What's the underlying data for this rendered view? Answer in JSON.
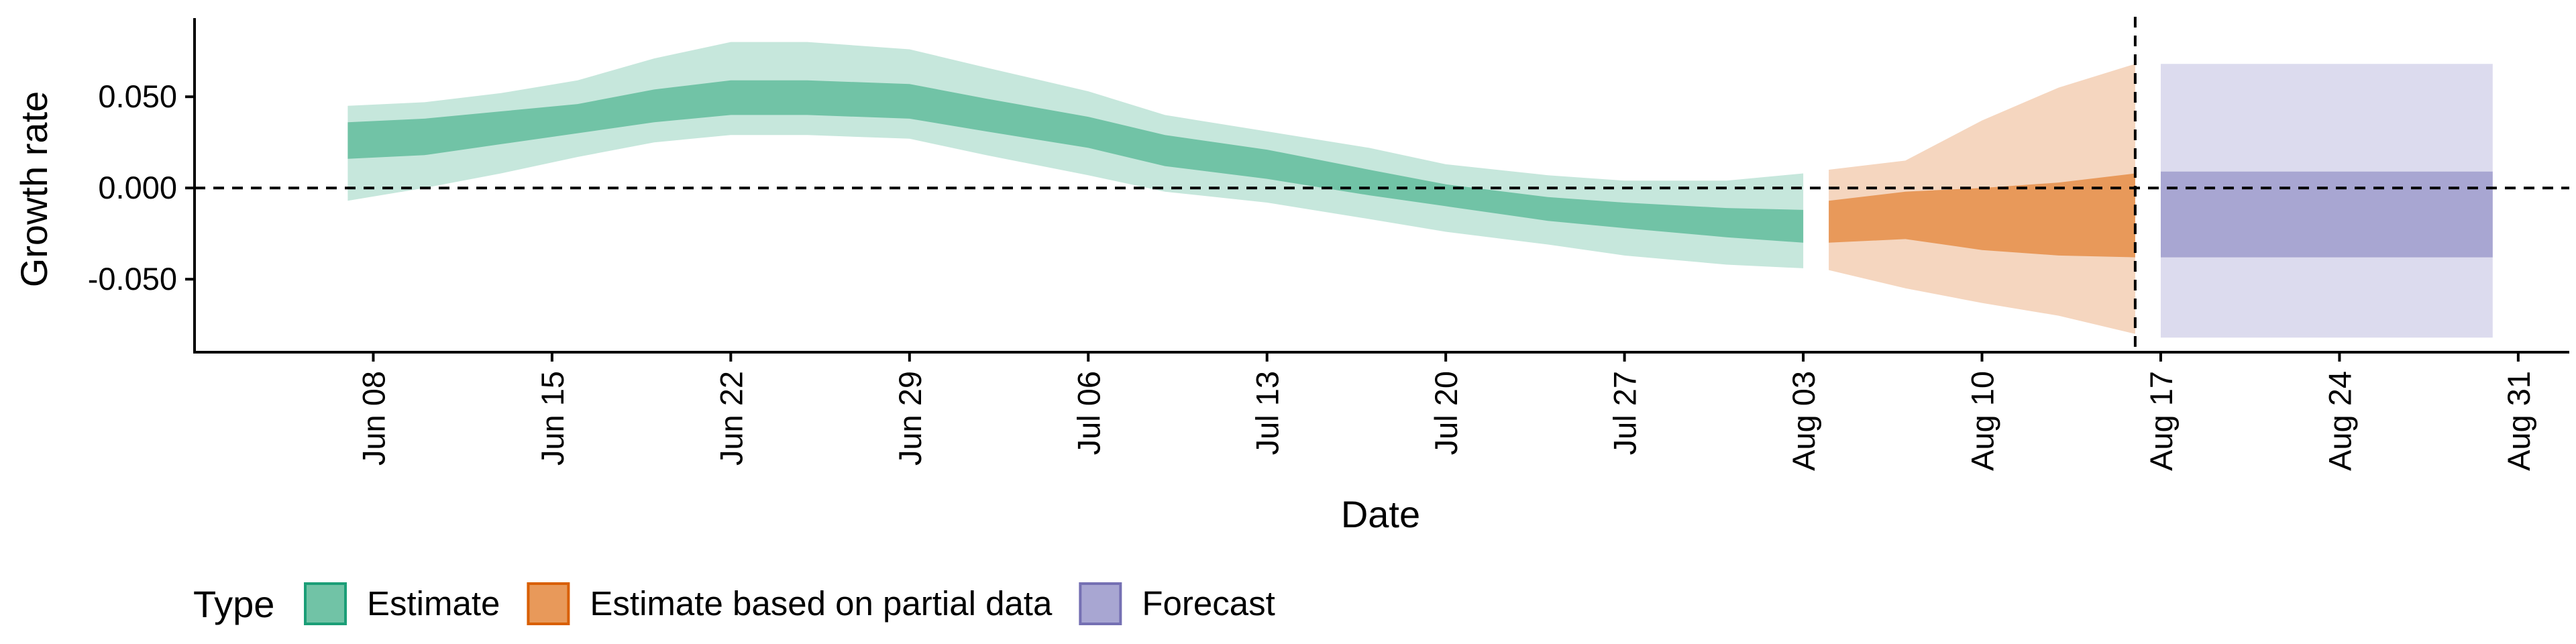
{
  "chart_data": {
    "type": "area",
    "xlabel": "Date",
    "ylabel": "Growth rate",
    "x_range": [
      "2020-06-01",
      "2020-09-02"
    ],
    "ylim": [
      -0.09,
      0.092
    ],
    "y_ticks": [
      0.05,
      0.0,
      -0.05
    ],
    "y_tick_labels": [
      "0.050",
      "0.000",
      "-0.050"
    ],
    "x_ticks": [
      "2020-06-08",
      "2020-06-15",
      "2020-06-22",
      "2020-06-29",
      "2020-07-06",
      "2020-07-13",
      "2020-07-20",
      "2020-07-27",
      "2020-08-03",
      "2020-08-10",
      "2020-08-17",
      "2020-08-24",
      "2020-08-31"
    ],
    "x_tick_labels": [
      "Jun 08",
      "Jun 15",
      "Jun 22",
      "Jun 29",
      "Jul 06",
      "Jul 13",
      "Jul 20",
      "Jul 27",
      "Aug 03",
      "Aug 10",
      "Aug 17",
      "Aug 24",
      "Aug 31"
    ],
    "reference_lines": [
      {
        "axis": "y",
        "value": 0,
        "style": "dashed"
      },
      {
        "axis": "x",
        "value": "2020-08-16",
        "style": "dashed"
      }
    ],
    "grid": false,
    "legend": {
      "title": "Type",
      "position": "bottom",
      "entries": [
        {
          "label": "Estimate",
          "fill": "#71c3a6",
          "border": "#1b9e77"
        },
        {
          "label": "Estimate based on partial data",
          "fill": "#e8995a",
          "border": "#d95f02"
        },
        {
          "label": "Forecast",
          "fill": "#a8a6d2",
          "border": "#7570b3"
        }
      ]
    },
    "series": [
      {
        "name": "Estimate",
        "inner_fill": "#71c3a6",
        "outer_fill": "#c6e7dc",
        "points": [
          {
            "date": "2020-06-07",
            "lo90": -0.007,
            "lo50": 0.016,
            "hi50": 0.036,
            "hi90": 0.045
          },
          {
            "date": "2020-06-10",
            "lo90": 0.0,
            "lo50": 0.018,
            "hi50": 0.038,
            "hi90": 0.047
          },
          {
            "date": "2020-06-13",
            "lo90": 0.008,
            "lo50": 0.024,
            "hi50": 0.042,
            "hi90": 0.052
          },
          {
            "date": "2020-06-16",
            "lo90": 0.017,
            "lo50": 0.03,
            "hi50": 0.046,
            "hi90": 0.059
          },
          {
            "date": "2020-06-19",
            "lo90": 0.025,
            "lo50": 0.036,
            "hi50": 0.054,
            "hi90": 0.071
          },
          {
            "date": "2020-06-22",
            "lo90": 0.029,
            "lo50": 0.04,
            "hi50": 0.059,
            "hi90": 0.08
          },
          {
            "date": "2020-06-25",
            "lo90": 0.029,
            "lo50": 0.04,
            "hi50": 0.059,
            "hi90": 0.08
          },
          {
            "date": "2020-06-29",
            "lo90": 0.027,
            "lo50": 0.038,
            "hi50": 0.057,
            "hi90": 0.076
          },
          {
            "date": "2020-07-02",
            "lo90": 0.018,
            "lo50": 0.031,
            "hi50": 0.049,
            "hi90": 0.066
          },
          {
            "date": "2020-07-06",
            "lo90": 0.007,
            "lo50": 0.022,
            "hi50": 0.039,
            "hi90": 0.053
          },
          {
            "date": "2020-07-09",
            "lo90": -0.002,
            "lo50": 0.012,
            "hi50": 0.029,
            "hi90": 0.04
          },
          {
            "date": "2020-07-13",
            "lo90": -0.008,
            "lo50": 0.005,
            "hi50": 0.021,
            "hi90": 0.031
          },
          {
            "date": "2020-07-17",
            "lo90": -0.017,
            "lo50": -0.004,
            "hi50": 0.01,
            "hi90": 0.022
          },
          {
            "date": "2020-07-20",
            "lo90": -0.024,
            "lo50": -0.01,
            "hi50": 0.002,
            "hi90": 0.013
          },
          {
            "date": "2020-07-24",
            "lo90": -0.031,
            "lo50": -0.018,
            "hi50": -0.005,
            "hi90": 0.007
          },
          {
            "date": "2020-07-27",
            "lo90": -0.037,
            "lo50": -0.022,
            "hi50": -0.008,
            "hi90": 0.004
          },
          {
            "date": "2020-07-31",
            "lo90": -0.042,
            "lo50": -0.027,
            "hi50": -0.011,
            "hi90": 0.004
          },
          {
            "date": "2020-08-03",
            "lo90": -0.044,
            "lo50": -0.03,
            "hi50": -0.012,
            "hi90": 0.008
          }
        ]
      },
      {
        "name": "Estimate based on partial data",
        "inner_fill": "#e8995a",
        "outer_fill": "#f5d6bf",
        "points": [
          {
            "date": "2020-08-04",
            "lo90": -0.045,
            "lo50": -0.03,
            "hi50": -0.007,
            "hi90": 0.01
          },
          {
            "date": "2020-08-07",
            "lo90": -0.055,
            "lo50": -0.028,
            "hi50": -0.002,
            "hi90": 0.015
          },
          {
            "date": "2020-08-10",
            "lo90": -0.063,
            "lo50": -0.034,
            "hi50": 0.0,
            "hi90": 0.037
          },
          {
            "date": "2020-08-13",
            "lo90": -0.07,
            "lo50": -0.037,
            "hi50": 0.003,
            "hi90": 0.055
          },
          {
            "date": "2020-08-16",
            "lo90": -0.08,
            "lo50": -0.038,
            "hi50": 0.008,
            "hi90": 0.068
          }
        ]
      },
      {
        "name": "Forecast",
        "inner_fill": "#a8a6d2",
        "outer_fill": "#dcdbee",
        "points": [
          {
            "date": "2020-08-17",
            "lo90": -0.082,
            "lo50": -0.038,
            "hi50": 0.009,
            "hi90": 0.068
          },
          {
            "date": "2020-08-30",
            "lo90": -0.082,
            "lo50": -0.038,
            "hi50": 0.009,
            "hi90": 0.068
          }
        ]
      }
    ]
  }
}
